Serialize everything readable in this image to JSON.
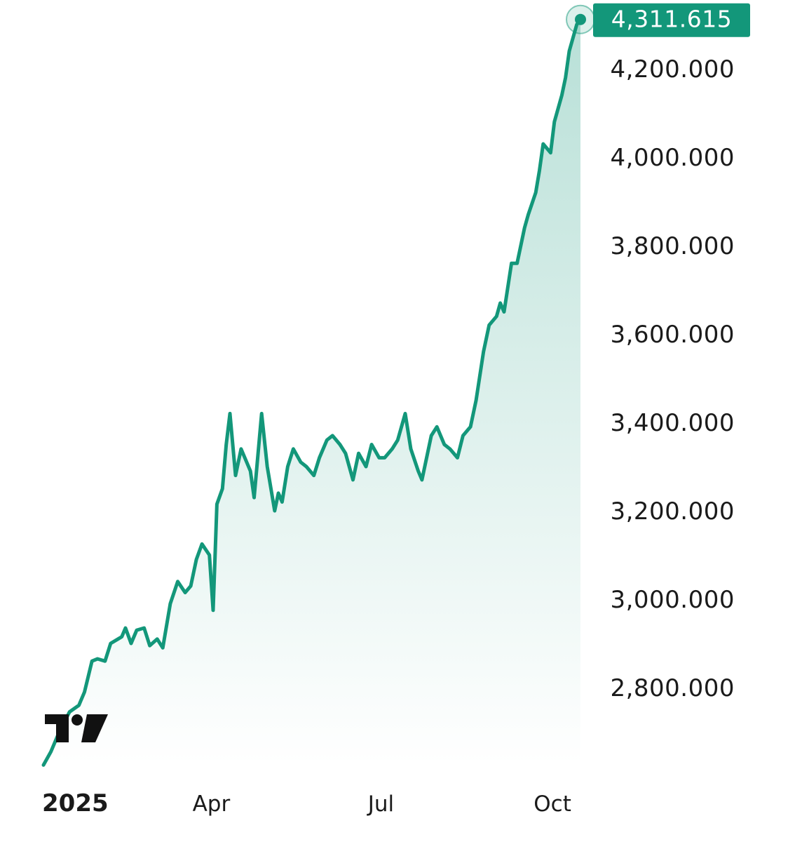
{
  "chart_data": {
    "type": "area",
    "x_ticks": [
      "2025",
      "Apr",
      "Jul",
      "Oct"
    ],
    "y_ticks": [
      "2,800.000",
      "3,000.000",
      "3,200.000",
      "3,400.000",
      "3,600.000",
      "3,800.000",
      "4,000.000",
      "4,200.000"
    ],
    "ylim": [
      2620,
      4360
    ],
    "last_price": 4311.615,
    "last_price_label": "4,311.615",
    "grid": false,
    "series": [
      {
        "x": [
          "2025-01-01",
          "2025-01-05",
          "2025-01-10",
          "2025-01-15",
          "2025-01-20",
          "2025-01-23",
          "2025-01-27",
          "2025-01-30",
          "2025-02-03",
          "2025-02-06",
          "2025-02-10",
          "2025-02-12",
          "2025-02-14",
          "2025-02-17",
          "2025-02-20",
          "2025-02-24",
          "2025-02-27",
          "2025-03-03",
          "2025-03-06",
          "2025-03-10",
          "2025-03-14",
          "2025-03-18",
          "2025-03-21",
          "2025-03-24",
          "2025-03-27",
          "2025-03-31",
          "2025-04-02",
          "2025-04-04",
          "2025-04-07",
          "2025-04-09",
          "2025-04-11",
          "2025-04-14",
          "2025-04-17",
          "2025-04-22",
          "2025-04-24",
          "2025-04-28",
          "2025-05-01",
          "2025-05-05",
          "2025-05-07",
          "2025-05-09",
          "2025-05-12",
          "2025-05-15",
          "2025-05-19",
          "2025-05-22",
          "2025-05-26",
          "2025-05-29",
          "2025-06-02",
          "2025-06-05",
          "2025-06-09",
          "2025-06-12",
          "2025-06-16",
          "2025-06-19",
          "2025-06-23",
          "2025-06-26",
          "2025-06-30",
          "2025-07-03",
          "2025-07-07",
          "2025-07-10",
          "2025-07-14",
          "2025-07-17",
          "2025-07-21",
          "2025-07-23",
          "2025-07-25",
          "2025-07-28",
          "2025-07-31",
          "2025-08-04",
          "2025-08-07",
          "2025-08-11",
          "2025-08-14",
          "2025-08-18",
          "2025-08-21",
          "2025-08-25",
          "2025-08-28",
          "2025-09-01",
          "2025-09-03",
          "2025-09-05",
          "2025-09-09",
          "2025-09-12",
          "2025-09-16",
          "2025-09-18",
          "2025-09-22",
          "2025-09-24",
          "2025-09-26",
          "2025-09-30",
          "2025-10-02",
          "2025-10-06",
          "2025-10-08",
          "2025-10-10",
          "2025-10-14",
          "2025-10-16"
        ],
        "values": [
          2625,
          2655,
          2705,
          2745,
          2760,
          2790,
          2860,
          2865,
          2860,
          2900,
          2910,
          2915,
          2935,
          2900,
          2930,
          2935,
          2895,
          2910,
          2890,
          2990,
          3040,
          3015,
          3030,
          3090,
          3125,
          3100,
          2975,
          3215,
          3250,
          3350,
          3420,
          3280,
          3340,
          3290,
          3230,
          3420,
          3300,
          3200,
          3240,
          3220,
          3300,
          3340,
          3310,
          3300,
          3280,
          3320,
          3360,
          3370,
          3350,
          3330,
          3270,
          3330,
          3300,
          3350,
          3320,
          3320,
          3340,
          3360,
          3420,
          3340,
          3290,
          3270,
          3310,
          3370,
          3390,
          3350,
          3340,
          3320,
          3370,
          3390,
          3450,
          3560,
          3620,
          3640,
          3670,
          3650,
          3760,
          3760,
          3840,
          3870,
          3920,
          3970,
          4030,
          4010,
          4080,
          4140,
          4180,
          4240,
          4300,
          4311.615
        ]
      }
    ],
    "colors": {
      "line": "#13977a",
      "fill": "#13977a",
      "label_bg": "#13977a",
      "label_text": "#ffffff",
      "ticks": "#1a1a1a"
    }
  }
}
